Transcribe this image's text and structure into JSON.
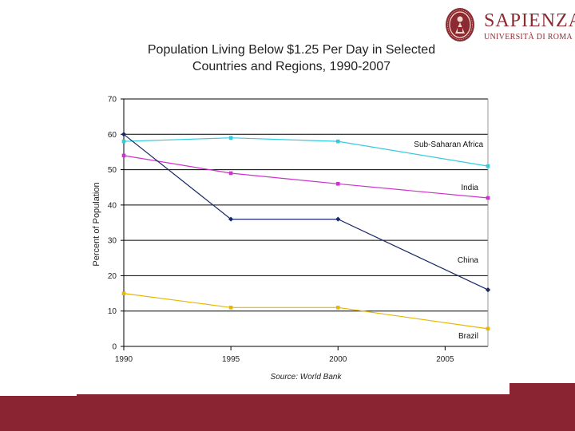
{
  "logo": {
    "name": "SAPIENZA",
    "subtitle": "UNIVERSITÀ DI ROMA",
    "seal_label": "university seal"
  },
  "colors": {
    "brand": "#8a2432",
    "sub_saharan_africa": "#33ccdd",
    "india": "#cc33cc",
    "china": "#1a2a66",
    "brazil": "#e6b800",
    "grid": "#000000"
  },
  "chart_data": {
    "type": "line",
    "title_lines": [
      "Population Living Below $1.25 Per Day in Selected",
      "Countries and Regions, 1990-2007"
    ],
    "xlabel": "Source: World Bank",
    "ylabel": "Percent of Population",
    "xlim": [
      1990,
      2007
    ],
    "ylim": [
      0,
      70
    ],
    "x_ticks": [
      1990,
      1995,
      2000,
      2005
    ],
    "y_ticks": [
      0,
      10,
      20,
      30,
      40,
      50,
      60,
      70
    ],
    "grid": true,
    "series": [
      {
        "name": "Sub-Saharan Africa",
        "color_key": "sub_saharan_africa",
        "x": [
          1990,
          1995,
          2000,
          2007
        ],
        "values": [
          58,
          59,
          58,
          51
        ]
      },
      {
        "name": "India",
        "color_key": "india",
        "x": [
          1990,
          1995,
          2000,
          2007
        ],
        "values": [
          54,
          49,
          46,
          42
        ]
      },
      {
        "name": "China",
        "color_key": "china",
        "x": [
          1990,
          1995,
          2000,
          2007
        ],
        "values": [
          60,
          36,
          36,
          16
        ]
      },
      {
        "name": "Brazil",
        "color_key": "brazil",
        "x": [
          1990,
          1995,
          2000,
          2007
        ],
        "values": [
          15,
          11,
          11,
          5
        ]
      }
    ]
  }
}
